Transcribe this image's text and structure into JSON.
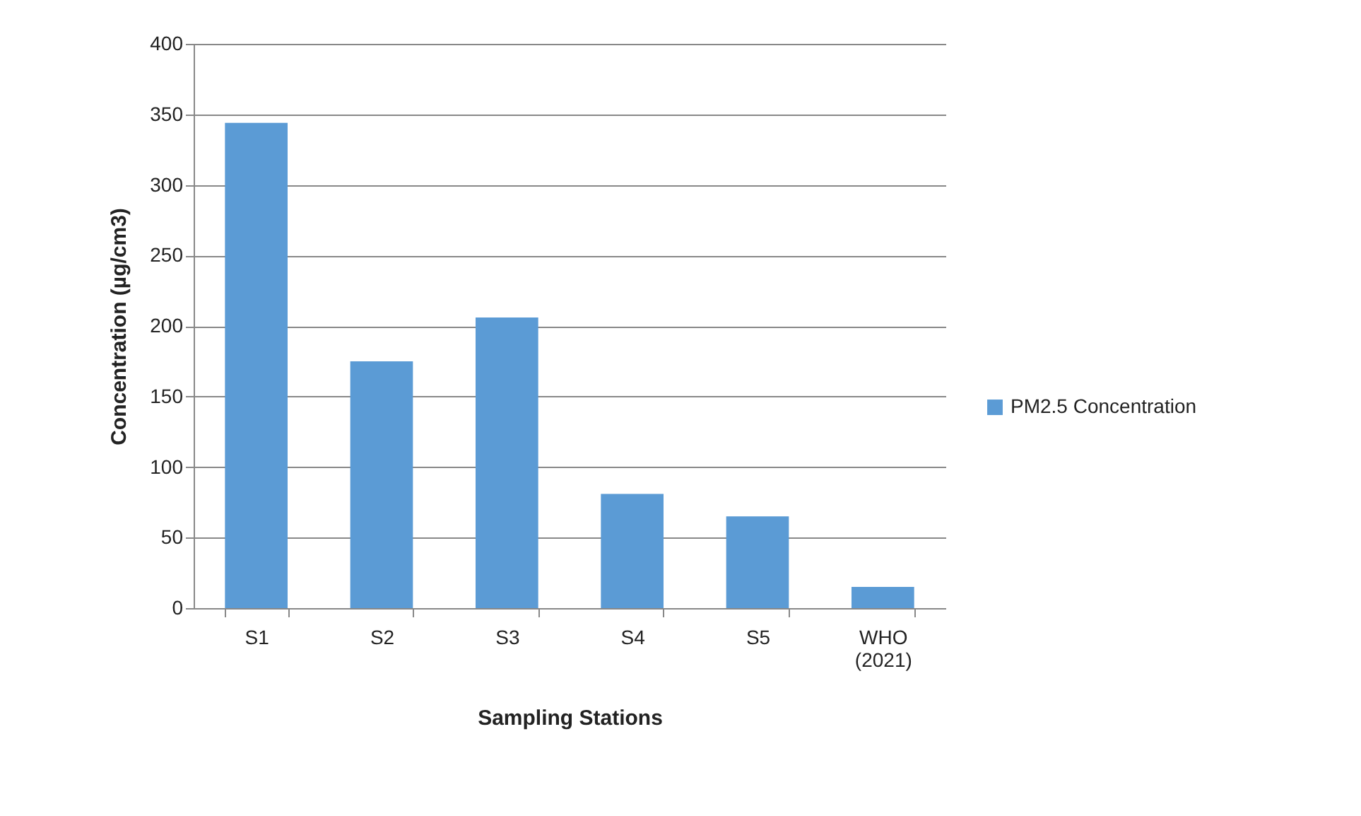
{
  "chart_data": {
    "type": "bar",
    "xlabel": "Sampling Stations",
    "ylabel": "Concentration (µg/cm3)",
    "categories": [
      "S1",
      "S2",
      "S3",
      "S4",
      "S5",
      "WHO (2021)"
    ],
    "series": [
      {
        "name": "PM2.5 Concentration",
        "color": "#5b9bd5",
        "values": [
          344,
          175,
          206,
          81,
          65,
          15
        ]
      }
    ],
    "ylim": [
      0,
      400
    ],
    "yticks": [
      0,
      50,
      100,
      150,
      200,
      250,
      300,
      350,
      400
    ],
    "grid": "y",
    "legend": "right"
  }
}
